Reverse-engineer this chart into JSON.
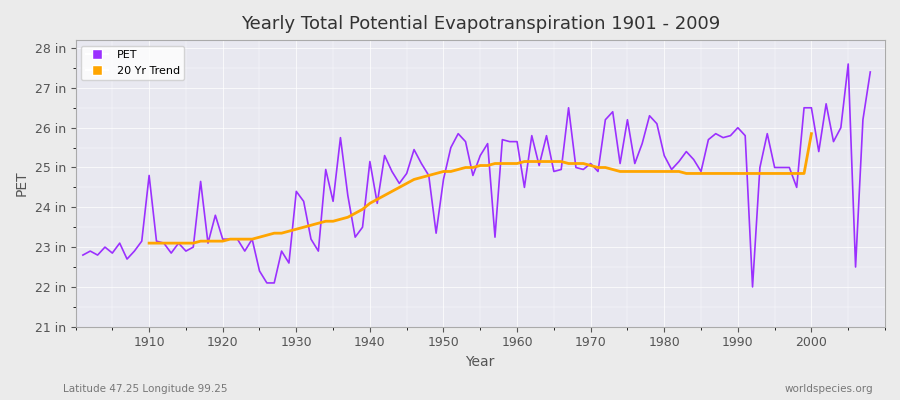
{
  "title": "Yearly Total Potential Evapotranspiration 1901 - 2009",
  "ylabel": "PET",
  "xlabel": "Year",
  "footnote_left": "Latitude 47.25 Longitude 99.25",
  "footnote_right": "worldspecies.org",
  "ylim": [
    21,
    28.2
  ],
  "yticks": [
    21,
    22,
    23,
    24,
    25,
    26,
    27,
    28
  ],
  "ytick_labels": [
    "21 in",
    "22 in",
    "23 in",
    "24 in",
    "25 in",
    "26 in",
    "27 in",
    "28 in"
  ],
  "xlim": [
    1900,
    2010
  ],
  "xticks": [
    1910,
    1920,
    1930,
    1940,
    1950,
    1960,
    1970,
    1980,
    1990,
    2000
  ],
  "pet_color": "#9B30FF",
  "trend_color": "#FFA500",
  "bg_color": "#EBEBEB",
  "plot_bg_color": "#E8E8F0",
  "grid_color": "#FFFFFF",
  "legend_labels": [
    "PET",
    "20 Yr Trend"
  ],
  "pet_data": [
    22.8,
    22.9,
    22.8,
    23.0,
    22.85,
    23.1,
    22.7,
    22.9,
    23.15,
    24.8,
    23.15,
    23.1,
    22.85,
    23.1,
    22.9,
    23.0,
    24.65,
    23.1,
    23.8,
    23.2,
    23.2,
    23.2,
    22.9,
    23.2,
    22.4,
    22.1,
    22.1,
    22.9,
    22.6,
    24.4,
    24.15,
    23.2,
    22.9,
    24.95,
    24.15,
    25.75,
    24.3,
    23.25,
    23.5,
    25.15,
    24.1,
    25.3,
    24.9,
    24.6,
    24.85,
    25.45,
    25.1,
    24.8,
    23.35,
    24.7,
    25.5,
    25.85,
    25.65,
    24.8,
    25.3,
    25.6,
    23.25,
    25.7,
    25.65,
    25.65,
    24.5,
    25.8,
    25.05,
    25.8,
    24.9,
    24.95,
    26.5,
    25.0,
    24.95,
    25.1,
    24.9,
    26.2,
    26.4,
    25.1,
    26.2,
    25.1,
    25.6,
    26.3,
    26.1,
    25.3,
    24.95,
    25.15,
    25.4,
    25.2,
    24.9,
    25.7,
    25.85,
    25.75,
    25.8,
    26.0,
    25.8,
    22.0,
    25.0,
    25.85,
    25.0,
    25.0,
    25.0,
    24.5,
    26.5,
    26.5,
    25.4,
    26.6,
    25.65,
    26.0,
    27.6,
    22.5,
    26.2,
    27.4
  ],
  "trend_data_years": [
    1910,
    1911,
    1912,
    1913,
    1914,
    1915,
    1916,
    1917,
    1918,
    1919,
    1920,
    1921,
    1922,
    1923,
    1924,
    1925,
    1926,
    1927,
    1928,
    1929,
    1930,
    1931,
    1932,
    1933,
    1934,
    1935,
    1936,
    1937,
    1938,
    1939,
    1940,
    1941,
    1942,
    1943,
    1944,
    1945,
    1946,
    1947,
    1948,
    1949,
    1950,
    1951,
    1952,
    1953,
    1954,
    1955,
    1956,
    1957,
    1958,
    1959,
    1960,
    1961,
    1962,
    1963,
    1964,
    1965,
    1966,
    1967,
    1968,
    1969,
    1970,
    1971,
    1972,
    1973,
    1974,
    1975,
    1976,
    1977,
    1978,
    1979,
    1980,
    1981,
    1982,
    1983,
    1984,
    1985,
    1986,
    1987,
    1988,
    1989,
    1990,
    1991,
    1992,
    1993,
    1994,
    1995,
    1996,
    1997,
    1998,
    1999,
    2000
  ],
  "trend_data_values": [
    23.1,
    23.1,
    23.1,
    23.1,
    23.1,
    23.1,
    23.1,
    23.15,
    23.15,
    23.15,
    23.15,
    23.2,
    23.2,
    23.2,
    23.2,
    23.25,
    23.3,
    23.35,
    23.35,
    23.4,
    23.45,
    23.5,
    23.55,
    23.6,
    23.65,
    23.65,
    23.7,
    23.75,
    23.85,
    23.95,
    24.1,
    24.2,
    24.3,
    24.4,
    24.5,
    24.6,
    24.7,
    24.75,
    24.8,
    24.85,
    24.9,
    24.9,
    24.95,
    25.0,
    25.0,
    25.05,
    25.05,
    25.1,
    25.1,
    25.1,
    25.1,
    25.15,
    25.15,
    25.15,
    25.15,
    25.15,
    25.15,
    25.1,
    25.1,
    25.1,
    25.05,
    25.0,
    25.0,
    24.95,
    24.9,
    24.9,
    24.9,
    24.9,
    24.9,
    24.9,
    24.9,
    24.9,
    24.9,
    24.85,
    24.85,
    24.85,
    24.85,
    24.85,
    24.85,
    24.85,
    24.85,
    24.85,
    24.85,
    24.85,
    24.85,
    24.85,
    24.85,
    24.85,
    24.85,
    24.85,
    25.85
  ]
}
